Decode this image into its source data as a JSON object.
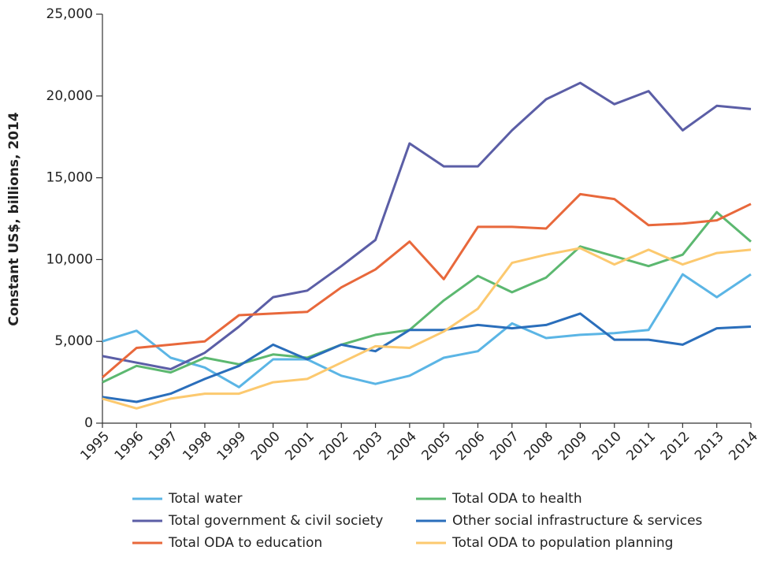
{
  "chart_data": {
    "type": "line",
    "y_label": "Constant US$, billions, 2014",
    "categories": [
      "1995",
      "1996",
      "1997",
      "1998",
      "1999",
      "2000",
      "2001",
      "2002",
      "2003",
      "2004",
      "2005",
      "2006",
      "2007",
      "2008",
      "2009",
      "2010",
      "2011",
      "2012",
      "2013",
      "2014"
    ],
    "ylim": [
      0,
      25000
    ],
    "yticks": [
      0,
      {
        "value": 5000,
        "label": "5,000"
      },
      {
        "value": 10000,
        "label": "10,000"
      },
      {
        "value": 15000,
        "label": "15,000"
      },
      {
        "value": 20000,
        "label": "20,000"
      },
      {
        "value": 25000,
        "label": "25,000"
      }
    ],
    "series": [
      {
        "name": "Total water",
        "color": "#5bb5e5",
        "values": [
          5000,
          5650,
          4000,
          3400,
          2200,
          3900,
          3900,
          2900,
          2400,
          2900,
          4000,
          4400,
          6100,
          5200,
          5400,
          5500,
          5700,
          9100,
          7700,
          9100
        ]
      },
      {
        "name": "Total ODA to health",
        "color": "#5cb870",
        "values": [
          2500,
          3500,
          3100,
          4000,
          3600,
          4200,
          4000,
          4800,
          5400,
          5700,
          7500,
          9000,
          8000,
          8900,
          10800,
          10200,
          9600,
          10300,
          12900,
          11100
        ]
      },
      {
        "name": "Total government & civil society",
        "color": "#5b5ea6",
        "values": [
          4100,
          3700,
          3300,
          4300,
          5900,
          7700,
          8100,
          9600,
          11200,
          17100,
          15700,
          15700,
          17900,
          19800,
          20800,
          19500,
          20300,
          17900,
          19400,
          19200
        ]
      },
      {
        "name": "Other social infrastructure & services",
        "color": "#2a6ebb",
        "values": [
          1600,
          1300,
          1800,
          2700,
          3500,
          4800,
          3900,
          4800,
          4400,
          5700,
          5700,
          6000,
          5800,
          6000,
          6700,
          5100,
          5100,
          4800,
          5800,
          5900
        ]
      },
      {
        "name": "Total ODA to education",
        "color": "#e8683b",
        "values": [
          2800,
          4600,
          4800,
          5000,
          6600,
          6700,
          6800,
          8300,
          9400,
          11100,
          8800,
          12000,
          12000,
          11900,
          14000,
          13700,
          12100,
          12200,
          12400,
          13400
        ]
      },
      {
        "name": "Total ODA to population planning",
        "color": "#fcc96f",
        "values": [
          1500,
          900,
          1500,
          1800,
          1800,
          2500,
          2700,
          3700,
          4700,
          4600,
          5600,
          7000,
          9800,
          10300,
          10700,
          9700,
          10600,
          9700,
          10400,
          10600
        ]
      }
    ]
  }
}
